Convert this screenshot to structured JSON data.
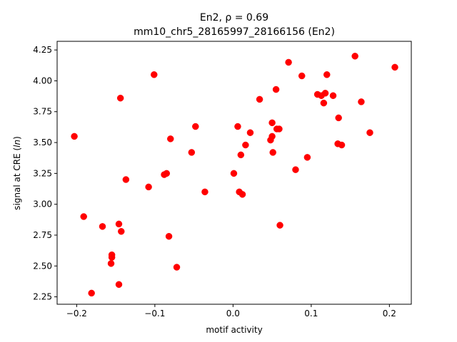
{
  "chart_data": {
    "type": "scatter",
    "title": "En2, ρ = 0.69",
    "subtitle": "mm10_chr5_28165997_28166156 (En2)",
    "xlabel": "motif activity",
    "ylabel": "signal at CRE (ln)",
    "xlim": [
      -0.225,
      0.228
    ],
    "ylim": [
      2.19,
      4.32
    ],
    "xticks": [
      -0.2,
      -0.1,
      0.0,
      0.1,
      0.2
    ],
    "xtick_labels": [
      "−0.2",
      "−0.1",
      "0.0",
      "0.1",
      "0.2"
    ],
    "yticks": [
      2.25,
      2.5,
      2.75,
      3.0,
      3.25,
      3.5,
      3.75,
      4.0,
      4.25
    ],
    "ytick_labels": [
      "2.25",
      "2.50",
      "2.75",
      "3.00",
      "3.25",
      "3.50",
      "3.75",
      "4.00",
      "4.25"
    ],
    "grid": false,
    "marker_color": "#ff0000",
    "points": [
      [
        -0.203,
        3.55
      ],
      [
        -0.191,
        2.9
      ],
      [
        -0.181,
        2.28
      ],
      [
        -0.167,
        2.82
      ],
      [
        -0.155,
        2.59
      ],
      [
        -0.155,
        2.57
      ],
      [
        -0.156,
        2.52
      ],
      [
        -0.146,
        2.84
      ],
      [
        -0.143,
        2.78
      ],
      [
        -0.146,
        2.35
      ],
      [
        -0.144,
        3.86
      ],
      [
        -0.137,
        3.2
      ],
      [
        -0.108,
        3.14
      ],
      [
        -0.101,
        4.05
      ],
      [
        -0.088,
        3.24
      ],
      [
        -0.085,
        3.25
      ],
      [
        -0.082,
        2.74
      ],
      [
        -0.08,
        3.53
      ],
      [
        -0.072,
        2.49
      ],
      [
        -0.053,
        3.42
      ],
      [
        -0.048,
        3.63
      ],
      [
        -0.036,
        3.1
      ],
      [
        0.001,
        3.25
      ],
      [
        0.006,
        3.63
      ],
      [
        0.008,
        3.1
      ],
      [
        0.01,
        3.4
      ],
      [
        0.012,
        3.08
      ],
      [
        0.016,
        3.48
      ],
      [
        0.022,
        3.58
      ],
      [
        0.034,
        3.85
      ],
      [
        0.048,
        3.52
      ],
      [
        0.05,
        3.55
      ],
      [
        0.05,
        3.66
      ],
      [
        0.051,
        3.42
      ],
      [
        0.055,
        3.93
      ],
      [
        0.056,
        3.61
      ],
      [
        0.059,
        3.61
      ],
      [
        0.06,
        2.83
      ],
      [
        0.071,
        4.15
      ],
      [
        0.08,
        3.28
      ],
      [
        0.088,
        4.04
      ],
      [
        0.095,
        3.38
      ],
      [
        0.108,
        3.89
      ],
      [
        0.113,
        3.88
      ],
      [
        0.116,
        3.82
      ],
      [
        0.118,
        3.9
      ],
      [
        0.12,
        4.05
      ],
      [
        0.128,
        3.88
      ],
      [
        0.134,
        3.49
      ],
      [
        0.135,
        3.7
      ],
      [
        0.139,
        3.48
      ],
      [
        0.156,
        4.2
      ],
      [
        0.164,
        3.83
      ],
      [
        0.175,
        3.58
      ],
      [
        0.207,
        4.11
      ]
    ]
  }
}
